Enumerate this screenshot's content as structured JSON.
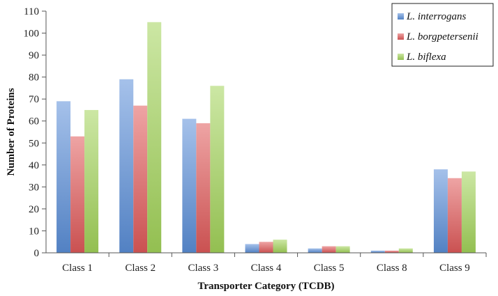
{
  "chart_data": {
    "type": "bar",
    "title": "",
    "xlabel": "Transporter Category (TCDB)",
    "ylabel": "Number of Proteins",
    "categories": [
      "Class 1",
      "Class 2",
      "Class 3",
      "Class 4",
      "Class 5",
      "Class 8",
      "Class 9"
    ],
    "series": [
      {
        "name": "L. interrogans",
        "values": [
          69,
          79,
          61,
          4,
          2,
          1,
          38
        ],
        "color": "#5b8fd9"
      },
      {
        "name": "L. borgpetersenii",
        "values": [
          53,
          67,
          59,
          5,
          3,
          1,
          34
        ],
        "color": "#e05a5a"
      },
      {
        "name": "L. biflexa",
        "values": [
          65,
          105,
          76,
          6,
          3,
          2,
          37
        ],
        "color": "#a3d45a"
      }
    ],
    "ylim": [
      0,
      110
    ],
    "yticks": [
      0,
      10,
      20,
      30,
      40,
      50,
      60,
      70,
      80,
      90,
      100,
      110
    ],
    "grid": false,
    "legend_position": "top-right"
  }
}
